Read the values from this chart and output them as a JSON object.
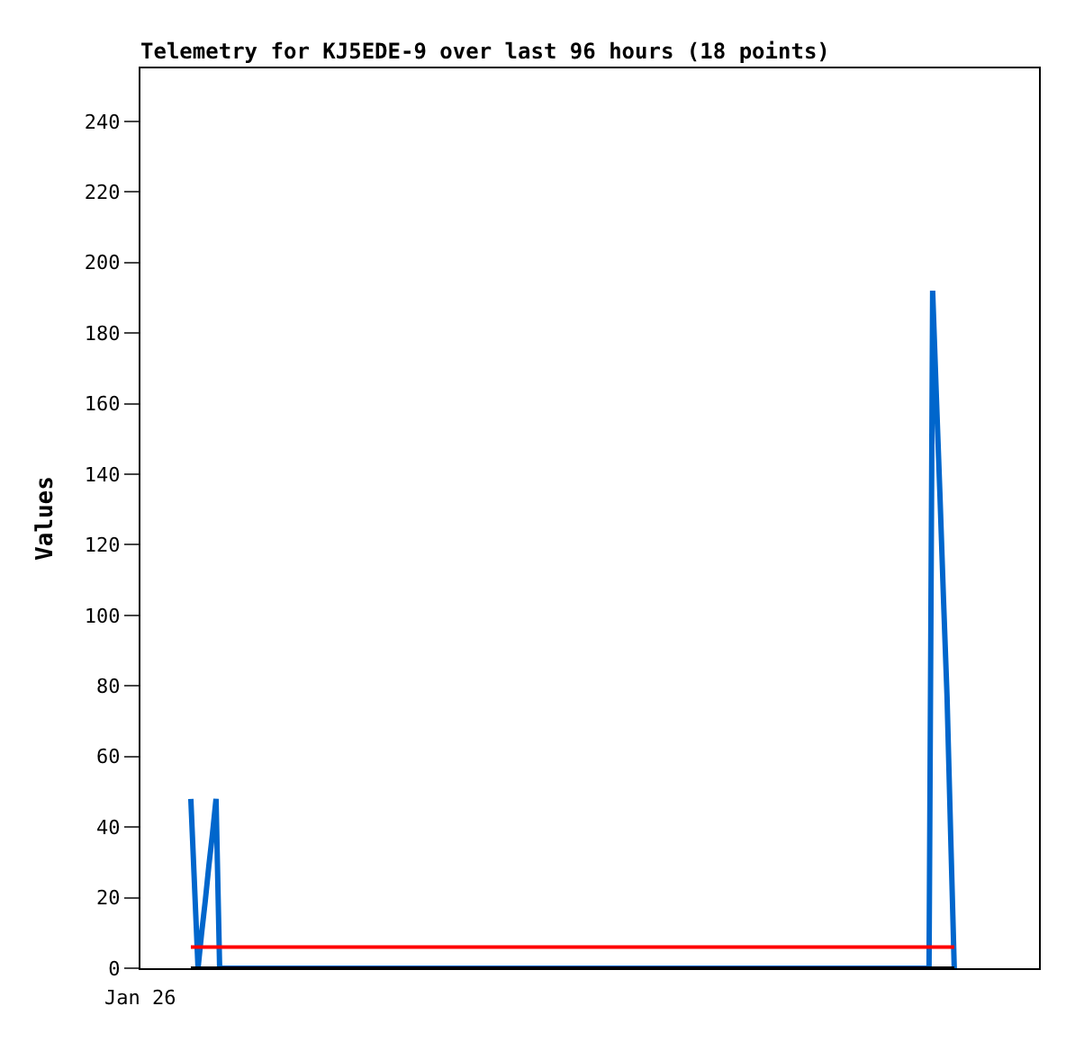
{
  "chart_data": {
    "type": "line",
    "title": "Telemetry for KJ5EDE-9 over last 96 hours (18 points)",
    "ylabel": "Values",
    "annotations": [
      "Jan 26"
    ],
    "ylim": [
      0,
      255
    ],
    "yticks": [
      0,
      20,
      40,
      60,
      80,
      100,
      120,
      140,
      160,
      180,
      200,
      220,
      240
    ],
    "marker": "none",
    "line_style": "solid",
    "categories": [
      null,
      null,
      null,
      null,
      null,
      null,
      null,
      null,
      null,
      null,
      null,
      null,
      null,
      null,
      null,
      null,
      null,
      null,
      null,
      null,
      null,
      null,
      null,
      null,
      null,
      null,
      null,
      null,
      null,
      null,
      null,
      null,
      null,
      null,
      null,
      null,
      null,
      null,
      null,
      null,
      null,
      null,
      null,
      null,
      null,
      null,
      null,
      null,
      null,
      null,
      null,
      null,
      null,
      null,
      null,
      null,
      null,
      null,
      null,
      null,
      null,
      null,
      null,
      null,
      null,
      null,
      null,
      null,
      null,
      null,
      null,
      null,
      null,
      null,
      null,
      null,
      null,
      null,
      null,
      null,
      null,
      null,
      null,
      null,
      null,
      null,
      null,
      null,
      null,
      null,
      null,
      null,
      null,
      null,
      null,
      null,
      null,
      null,
      null,
      null,
      null,
      null,
      null,
      null,
      null,
      null,
      null,
      null,
      null,
      null,
      null,
      null,
      null,
      null,
      null,
      null,
      null,
      null,
      null,
      null,
      null,
      null,
      null,
      null,
      null,
      null,
      null,
      null,
      null,
      null,
      null,
      null,
      null,
      null,
      null,
      null,
      null,
      null,
      null,
      null,
      null,
      null,
      null,
      null,
      null,
      null,
      null,
      null,
      null,
      null,
      null,
      null,
      null,
      null,
      null,
      null,
      null,
      null,
      null,
      null,
      null,
      null,
      null,
      null,
      null,
      null,
      null,
      null,
      null,
      null,
      null,
      null,
      null,
      null,
      null,
      null,
      null,
      null,
      null,
      null,
      null,
      null,
      null,
      null,
      null,
      null,
      null,
      null,
      null,
      null,
      null,
      null,
      null,
      null,
      null,
      null,
      null,
      null,
      null,
      null,
      null,
      null,
      null,
      null,
      null,
      null,
      null,
      null,
      null,
      null,
      null,
      null,
      null
    ],
    "ref_lines": [
      {
        "axis": "y",
        "value": 6,
        "color": "#ff0000"
      },
      {
        "axis": "y",
        "value": 0,
        "color": "#000000"
      }
    ],
    "series": [
      {
        "color": "#0066cc",
        "values": [
          48,
          24,
          0,
          10,
          19,
          29,
          38,
          48,
          0,
          0,
          0,
          0,
          0,
          0,
          0,
          0,
          0,
          0,
          0,
          0,
          0,
          0,
          0,
          0,
          0,
          0,
          0,
          0,
          0,
          0,
          0,
          0,
          0,
          0,
          0,
          0,
          0,
          0,
          0,
          0,
          0,
          0,
          0,
          0,
          0,
          0,
          0,
          0,
          0,
          0,
          0,
          0,
          0,
          0,
          0,
          0,
          0,
          0,
          0,
          0,
          0,
          0,
          0,
          0,
          0,
          0,
          0,
          0,
          0,
          0,
          0,
          0,
          0,
          0,
          0,
          0,
          0,
          0,
          0,
          0,
          0,
          0,
          0,
          0,
          0,
          0,
          0,
          0,
          0,
          0,
          0,
          0,
          0,
          0,
          0,
          0,
          0,
          0,
          0,
          0,
          0,
          0,
          0,
          0,
          0,
          0,
          0,
          0,
          0,
          0,
          0,
          0,
          0,
          0,
          0,
          0,
          0,
          0,
          0,
          0,
          0,
          0,
          0,
          0,
          0,
          0,
          0,
          0,
          0,
          0,
          0,
          0,
          0,
          0,
          0,
          0,
          0,
          0,
          0,
          0,
          0,
          0,
          0,
          0,
          0,
          0,
          0,
          0,
          0,
          0,
          0,
          0,
          0,
          0,
          0,
          0,
          0,
          0,
          0,
          0,
          0,
          0,
          0,
          0,
          0,
          0,
          0,
          0,
          0,
          0,
          0,
          0,
          0,
          0,
          0,
          0,
          0,
          0,
          0,
          0,
          0,
          0,
          0,
          0,
          0,
          0,
          0,
          0,
          0,
          0,
          0,
          0,
          0,
          0,
          0,
          0,
          0,
          0,
          0,
          0,
          0,
          0,
          0,
          0,
          0,
          0,
          192,
          163,
          135,
          105,
          77,
          38,
          0
        ]
      }
    ]
  }
}
